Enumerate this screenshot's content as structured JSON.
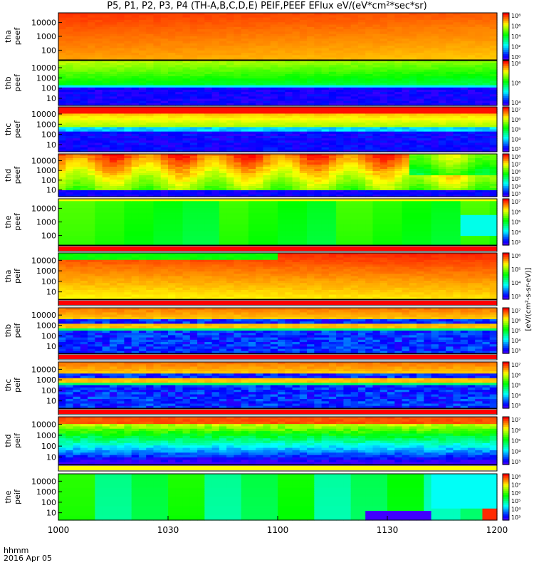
{
  "title": "P5, P1, P2, P3, P4 (TH-A,B,C,D,E) PEIF,PEEF EFlux eV/(eV*cm²*sec*sr)",
  "x_axis": {
    "format_label": "hhmm",
    "date_label": "2016 Apr 05",
    "tick_labels": [
      "1000",
      "1030",
      "1100",
      "1130",
      "1200"
    ]
  },
  "colorbar_unit_label": "[eV/(cm²-s-sr-eV)]",
  "chart_data": {
    "type": "heatmap",
    "x_unit": "hhmm UT",
    "x_range": [
      "1000",
      "1200"
    ],
    "y_scale": "log",
    "y_unit": "eV",
    "panels": [
      {
        "label": [
          "tha",
          "peef"
        ],
        "y_ticks": [
          "10000",
          "1000",
          "100"
        ],
        "cbar_ticks": [
          "10⁸",
          "10⁶",
          "10⁴",
          "10²",
          "10⁰"
        ],
        "pattern": "electron-hot"
      },
      {
        "label": [
          "thb",
          "peef"
        ],
        "y_ticks": [
          "10000",
          "1000",
          "100",
          "10"
        ],
        "cbar_ticks": [
          "10⁸",
          "10⁶",
          "10⁴"
        ],
        "pattern": "electron-band"
      },
      {
        "label": [
          "thc",
          "peef"
        ],
        "y_ticks": [
          "10000",
          "1000",
          "100",
          "10"
        ],
        "cbar_ticks": [
          "10⁷",
          "10⁶",
          "10⁵",
          "10⁴",
          "10³"
        ],
        "pattern": "electron-lowE"
      },
      {
        "label": [
          "thd",
          "peef"
        ],
        "y_ticks": [
          "10000",
          "1000",
          "100",
          "10"
        ],
        "cbar_ticks": [
          "10⁸",
          "10⁷",
          "10⁶",
          "10⁵",
          "10⁴",
          "10³"
        ],
        "pattern": "electron-spiky"
      },
      {
        "label": [
          "the",
          "peef"
        ],
        "y_ticks": [
          "10000",
          "1000",
          "100"
        ],
        "cbar_ticks": [
          "10⁷",
          "10⁶",
          "10⁵",
          "10⁴",
          "10³"
        ],
        "pattern": "green-blocks"
      },
      {
        "label": [
          "tha",
          "peif"
        ],
        "y_ticks": [
          "10000",
          "1000",
          "100",
          "10"
        ],
        "cbar_ticks": [
          "10⁶",
          "10⁵",
          "10⁴",
          "10³"
        ],
        "pattern": "ion-hot"
      },
      {
        "label": [
          "thb",
          "peif"
        ],
        "y_ticks": [
          "10000",
          "1000",
          "100",
          "10"
        ],
        "cbar_ticks": [
          "10⁷",
          "10⁶",
          "10⁵",
          "10⁴",
          "10³"
        ],
        "pattern": "ion-band"
      },
      {
        "label": [
          "thc",
          "peif"
        ],
        "y_ticks": [
          "10000",
          "1000",
          "100",
          "10"
        ],
        "cbar_ticks": [
          "10⁷",
          "10⁶",
          "10⁵",
          "10⁴",
          "10³"
        ],
        "pattern": "ion-band"
      },
      {
        "label": [
          "thd",
          "peif"
        ],
        "y_ticks": [
          "10000",
          "1000",
          "100",
          "10"
        ],
        "cbar_ticks": [
          "10⁷",
          "10⁶",
          "10⁵",
          "10⁴",
          "10³"
        ],
        "pattern": "ion-gradient"
      },
      {
        "label": [
          "the",
          "peif"
        ],
        "y_ticks": [
          "10000",
          "1000",
          "100",
          "10"
        ],
        "cbar_ticks": [
          "10⁸",
          "10⁷",
          "10⁶",
          "10⁵",
          "10⁴",
          "10³"
        ],
        "pattern": "green-cyan-blocks"
      }
    ],
    "grid": false
  }
}
